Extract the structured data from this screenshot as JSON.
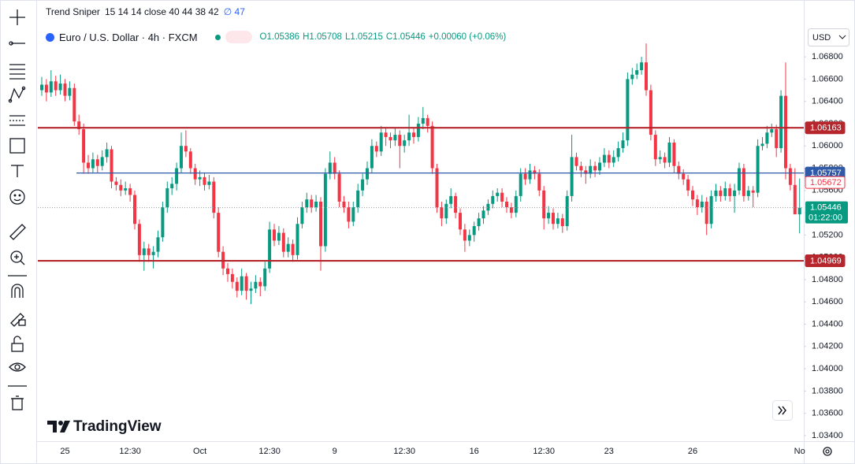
{
  "chart_data": {
    "type": "candlestick",
    "indicator_name": "Trend Sniper",
    "indicator_params": "15 14 14 close 40 44 38 42",
    "indicator_value": "∅ 47",
    "symbol": "Euro / U.S. Dollar · 4h · FXCM",
    "quote": [
      "O1.05386",
      "H1.05708",
      "L1.05215",
      "C1.05446",
      "+0.00060 (+0.06%)"
    ],
    "currency": "USD",
    "brand": "TradingView",
    "up_color": "#089981",
    "down_color": "#f23645",
    "grid": false,
    "ylim": [
      1.0335,
      1.0731
    ],
    "yticks": [
      {
        "value": 1.068,
        "label": "1.06800"
      },
      {
        "value": 1.066,
        "label": "1.06600"
      },
      {
        "value": 1.064,
        "label": "1.06400"
      },
      {
        "value": 1.062,
        "label": "1.06200"
      },
      {
        "value": 1.06,
        "label": "1.06000"
      },
      {
        "value": 1.058,
        "label": "1.05800"
      },
      {
        "value": 1.056,
        "label": "1.05600"
      },
      {
        "value": 1.054,
        "label": "1.05400"
      },
      {
        "value": 1.052,
        "label": "1.05200"
      },
      {
        "value": 1.05,
        "label": "1.05000"
      },
      {
        "value": 1.048,
        "label": "1.04800"
      },
      {
        "value": 1.046,
        "label": "1.04600"
      },
      {
        "value": 1.044,
        "label": "1.04400"
      },
      {
        "value": 1.042,
        "label": "1.04200"
      },
      {
        "value": 1.04,
        "label": "1.04000"
      },
      {
        "value": 1.038,
        "label": "1.03800"
      },
      {
        "value": 1.036,
        "label": "1.03600"
      },
      {
        "value": 1.034,
        "label": "1.03400"
      }
    ],
    "price_lines": [
      {
        "value": 1.06163,
        "color": "#b5272d",
        "style": "line"
      },
      {
        "value": 1.04969,
        "color": "#b5272d",
        "style": "line"
      },
      {
        "value": 1.05757,
        "color": "#2f5aa8",
        "style": "ray"
      },
      {
        "value": 1.05672,
        "color": "#f23645",
        "style": "outline"
      }
    ],
    "last_price": {
      "value": 1.05446,
      "countdown": "01:22:00",
      "color": "#089981"
    },
    "categories": [
      null,
      null,
      null,
      null,
      null,
      "25",
      null,
      null,
      null,
      null,
      null,
      null,
      null,
      null,
      null,
      null,
      null,
      null,
      null,
      "12:30",
      null,
      null,
      null,
      null,
      null,
      null,
      null,
      null,
      null,
      null,
      null,
      null,
      null,
      null,
      "Oct",
      null,
      null,
      null,
      null,
      null,
      null,
      null,
      null,
      null,
      null,
      null,
      null,
      null,
      null,
      "12:30",
      null,
      null,
      null,
      null,
      null,
      null,
      null,
      null,
      null,
      null,
      null,
      null,
      null,
      "9",
      null,
      null,
      null,
      null,
      null,
      null,
      null,
      null,
      null,
      null,
      null,
      null,
      null,
      null,
      "12:30",
      null,
      null,
      null,
      null,
      null,
      null,
      null,
      null,
      null,
      null,
      null,
      null,
      null,
      null,
      "16",
      null,
      null,
      null,
      null,
      null,
      null,
      null,
      null,
      null,
      null,
      null,
      null,
      null,
      null,
      "12:30",
      null,
      null,
      null,
      null,
      null,
      null,
      null,
      null,
      null,
      null,
      null,
      null,
      null,
      "23",
      null,
      null,
      null,
      null,
      null,
      null,
      null,
      null,
      null,
      null,
      null,
      null,
      null,
      null,
      null,
      null,
      null,
      "26",
      null,
      null,
      null,
      null,
      null,
      null,
      null,
      null,
      null,
      null,
      null,
      null,
      null,
      null,
      null,
      null,
      null,
      null,
      null,
      null,
      null,
      null,
      "No"
    ],
    "ohlc": [
      [
        1.065,
        1.0662,
        1.0645,
        1.0655
      ],
      [
        1.0655,
        1.066,
        1.064,
        1.0648
      ],
      [
        1.0648,
        1.0668,
        1.0644,
        1.0658
      ],
      [
        1.0658,
        1.0663,
        1.0645,
        1.065
      ],
      [
        1.065,
        1.0664,
        1.0646,
        1.0656
      ],
      [
        1.0656,
        1.066,
        1.064,
        1.0645
      ],
      [
        1.0645,
        1.0658,
        1.0641,
        1.0652
      ],
      [
        1.0652,
        1.0656,
        1.0618,
        1.0622
      ],
      [
        1.0622,
        1.0628,
        1.061,
        1.0615
      ],
      [
        1.0615,
        1.062,
        1.0575,
        1.0585
      ],
      [
        1.0585,
        1.0592,
        1.0575,
        1.058
      ],
      [
        1.058,
        1.0594,
        1.0576,
        1.0588
      ],
      [
        1.0588,
        1.0592,
        1.0576,
        1.0582
      ],
      [
        1.0582,
        1.0596,
        1.0578,
        1.059
      ],
      [
        1.059,
        1.0603,
        1.0585,
        1.0597
      ],
      [
        1.0597,
        1.06,
        1.0562,
        1.0568
      ],
      [
        1.0568,
        1.0572,
        1.056,
        1.0565
      ],
      [
        1.0565,
        1.057,
        1.0555,
        1.056
      ],
      [
        1.056,
        1.0568,
        1.0556,
        1.0562
      ],
      [
        1.0562,
        1.0566,
        1.055,
        1.0556
      ],
      [
        1.0556,
        1.056,
        1.0525,
        1.053
      ],
      [
        1.053,
        1.0534,
        1.0496,
        1.0502
      ],
      [
        1.0502,
        1.0514,
        1.0488,
        1.0508
      ],
      [
        1.0508,
        1.0512,
        1.0496,
        1.0502
      ],
      [
        1.0502,
        1.051,
        1.049,
        1.0505
      ],
      [
        1.0505,
        1.0524,
        1.05,
        1.0518
      ],
      [
        1.0518,
        1.055,
        1.0514,
        1.0545
      ],
      [
        1.0545,
        1.0568,
        1.054,
        1.0562
      ],
      [
        1.0562,
        1.0572,
        1.0556,
        1.0566
      ],
      [
        1.0566,
        1.0585,
        1.056,
        1.058
      ],
      [
        1.058,
        1.0612,
        1.0576,
        1.06
      ],
      [
        1.06,
        1.0614,
        1.059,
        1.0595
      ],
      [
        1.0595,
        1.0598,
        1.0575,
        1.058
      ],
      [
        1.058,
        1.0584,
        1.0565,
        1.057
      ],
      [
        1.057,
        1.0578,
        1.0564,
        1.0572
      ],
      [
        1.0572,
        1.0576,
        1.056,
        1.0565
      ],
      [
        1.0565,
        1.0574,
        1.0561,
        1.0568
      ],
      [
        1.0568,
        1.0572,
        1.0535,
        1.054
      ],
      [
        1.054,
        1.0545,
        1.05,
        1.0505
      ],
      [
        1.0505,
        1.051,
        1.0484,
        1.049
      ],
      [
        1.049,
        1.0495,
        1.0478,
        1.0485
      ],
      [
        1.0485,
        1.049,
        1.0472,
        1.0478
      ],
      [
        1.0478,
        1.0482,
        1.0464,
        1.047
      ],
      [
        1.047,
        1.049,
        1.0466,
        1.0483
      ],
      [
        1.0483,
        1.0486,
        1.0462,
        1.047
      ],
      [
        1.047,
        1.0478,
        1.0458,
        1.0472
      ],
      [
        1.0472,
        1.0484,
        1.0468,
        1.0478
      ],
      [
        1.0478,
        1.0482,
        1.0465,
        1.0474
      ],
      [
        1.0474,
        1.0496,
        1.047,
        1.049
      ],
      [
        1.049,
        1.0532,
        1.0486,
        1.0525
      ],
      [
        1.0525,
        1.053,
        1.051,
        1.0515
      ],
      [
        1.0515,
        1.0528,
        1.0511,
        1.0522
      ],
      [
        1.0522,
        1.0526,
        1.05,
        1.0505
      ],
      [
        1.0505,
        1.0518,
        1.05,
        1.0512
      ],
      [
        1.0512,
        1.0516,
        1.0496,
        1.0502
      ],
      [
        1.0502,
        1.0536,
        1.0498,
        1.053
      ],
      [
        1.053,
        1.055,
        1.0526,
        1.0545
      ],
      [
        1.0545,
        1.0558,
        1.054,
        1.0552
      ],
      [
        1.0552,
        1.0556,
        1.054,
        1.0545
      ],
      [
        1.0545,
        1.0556,
        1.0541,
        1.055
      ],
      [
        1.055,
        1.0554,
        1.0488,
        1.051
      ],
      [
        1.051,
        1.058,
        1.0505,
        1.0575
      ],
      [
        1.0575,
        1.0595,
        1.057,
        1.0585
      ],
      [
        1.0585,
        1.059,
        1.057,
        1.0575
      ],
      [
        1.0575,
        1.0578,
        1.0545,
        1.055
      ],
      [
        1.055,
        1.0555,
        1.054,
        1.0545
      ],
      [
        1.0545,
        1.055,
        1.0526,
        1.0532
      ],
      [
        1.0532,
        1.055,
        1.0528,
        1.0545
      ],
      [
        1.0545,
        1.0566,
        1.054,
        1.056
      ],
      [
        1.056,
        1.0575,
        1.0555,
        1.057
      ],
      [
        1.057,
        1.0586,
        1.0565,
        1.058
      ],
      [
        1.058,
        1.0606,
        1.0576,
        1.06
      ],
      [
        1.06,
        1.0604,
        1.059,
        1.0595
      ],
      [
        1.0595,
        1.0618,
        1.0591,
        1.0612
      ],
      [
        1.0612,
        1.0616,
        1.06,
        1.0608
      ],
      [
        1.0608,
        1.0612,
        1.0598,
        1.0605
      ],
      [
        1.0605,
        1.0616,
        1.06,
        1.061
      ],
      [
        1.061,
        1.0614,
        1.058,
        1.06
      ],
      [
        1.06,
        1.061,
        1.0594,
        1.0605
      ],
      [
        1.0605,
        1.0628,
        1.06,
        1.0612
      ],
      [
        1.0612,
        1.0616,
        1.0602,
        1.0608
      ],
      [
        1.0608,
        1.0626,
        1.0604,
        1.062
      ],
      [
        1.062,
        1.0635,
        1.0615,
        1.0625
      ],
      [
        1.0625,
        1.0628,
        1.0612,
        1.0618
      ],
      [
        1.0618,
        1.0622,
        1.0575,
        1.058
      ],
      [
        1.058,
        1.0584,
        1.054,
        1.0545
      ],
      [
        1.0545,
        1.055,
        1.0528,
        1.0535
      ],
      [
        1.0535,
        1.0552,
        1.053,
        1.0548
      ],
      [
        1.0548,
        1.0562,
        1.0544,
        1.0555
      ],
      [
        1.0555,
        1.0558,
        1.0535,
        1.054
      ],
      [
        1.054,
        1.0544,
        1.052,
        1.0525
      ],
      [
        1.0525,
        1.053,
        1.0505,
        1.0515
      ],
      [
        1.0515,
        1.0525,
        1.051,
        1.052
      ],
      [
        1.052,
        1.0532,
        1.0514,
        1.0528
      ],
      [
        1.0528,
        1.054,
        1.0524,
        1.0535
      ],
      [
        1.0535,
        1.0546,
        1.053,
        1.0542
      ],
      [
        1.0542,
        1.0552,
        1.0538,
        1.0548
      ],
      [
        1.0548,
        1.056,
        1.0544,
        1.0555
      ],
      [
        1.0555,
        1.0562,
        1.055,
        1.0558
      ],
      [
        1.0558,
        1.0562,
        1.0545,
        1.055
      ],
      [
        1.055,
        1.0554,
        1.054,
        1.0545
      ],
      [
        1.0545,
        1.0549,
        1.0535,
        1.054
      ],
      [
        1.054,
        1.056,
        1.0536,
        1.0555
      ],
      [
        1.0555,
        1.058,
        1.055,
        1.0575
      ],
      [
        1.0575,
        1.058,
        1.0565,
        1.057
      ],
      [
        1.057,
        1.0584,
        1.0566,
        1.0578
      ],
      [
        1.0578,
        1.0582,
        1.057,
        1.0575
      ],
      [
        1.0575,
        1.0579,
        1.0555,
        1.056
      ],
      [
        1.056,
        1.0564,
        1.0525,
        1.0535
      ],
      [
        1.0535,
        1.0546,
        1.053,
        1.054
      ],
      [
        1.054,
        1.0544,
        1.0525,
        1.053
      ],
      [
        1.053,
        1.054,
        1.0526,
        1.0535
      ],
      [
        1.0535,
        1.0539,
        1.0522,
        1.0528
      ],
      [
        1.0528,
        1.056,
        1.0524,
        1.0555
      ],
      [
        1.0555,
        1.061,
        1.055,
        1.059
      ],
      [
        1.059,
        1.0594,
        1.0578,
        1.0582
      ],
      [
        1.0582,
        1.0586,
        1.0572,
        1.0578
      ],
      [
        1.0578,
        1.0582,
        1.0566,
        1.0575
      ],
      [
        1.0575,
        1.0588,
        1.0571,
        1.0582
      ],
      [
        1.0582,
        1.0586,
        1.0572,
        1.0578
      ],
      [
        1.0578,
        1.059,
        1.0574,
        1.0585
      ],
      [
        1.0585,
        1.0598,
        1.0581,
        1.0592
      ],
      [
        1.0592,
        1.0596,
        1.058,
        1.0585
      ],
      [
        1.0585,
        1.0596,
        1.0581,
        1.059
      ],
      [
        1.059,
        1.0604,
        1.0586,
        1.0598
      ],
      [
        1.0598,
        1.0612,
        1.0594,
        1.0605
      ],
      [
        1.0605,
        1.0666,
        1.06,
        1.066
      ],
      [
        1.066,
        1.067,
        1.0655,
        1.0664
      ],
      [
        1.0664,
        1.0674,
        1.066,
        1.0668
      ],
      [
        1.0668,
        1.068,
        1.0664,
        1.0675
      ],
      [
        1.0675,
        1.0692,
        1.0645,
        1.065
      ],
      [
        1.065,
        1.0655,
        1.0605,
        1.061
      ],
      [
        1.061,
        1.0614,
        1.0582,
        1.0588
      ],
      [
        1.0588,
        1.0596,
        1.0584,
        1.059
      ],
      [
        1.059,
        1.0594,
        1.058,
        1.0585
      ],
      [
        1.0585,
        1.0608,
        1.0581,
        1.0603
      ],
      [
        1.0603,
        1.0606,
        1.0576,
        1.0582
      ],
      [
        1.0582,
        1.0586,
        1.057,
        1.0575
      ],
      [
        1.0575,
        1.0579,
        1.0565,
        1.057
      ],
      [
        1.057,
        1.0574,
        1.0555,
        1.056
      ],
      [
        1.056,
        1.0564,
        1.0546,
        1.0552
      ],
      [
        1.0552,
        1.0556,
        1.0538,
        1.0545
      ],
      [
        1.0545,
        1.0556,
        1.054,
        1.055
      ],
      [
        1.055,
        1.0554,
        1.052,
        1.053
      ],
      [
        1.053,
        1.056,
        1.0526,
        1.0555
      ],
      [
        1.0555,
        1.0566,
        1.055,
        1.056
      ],
      [
        1.056,
        1.0564,
        1.055,
        1.0555
      ],
      [
        1.0555,
        1.0568,
        1.0551,
        1.0562
      ],
      [
        1.0562,
        1.0566,
        1.055,
        1.0555
      ],
      [
        1.0555,
        1.0566,
        1.054,
        1.056
      ],
      [
        1.056,
        1.0585,
        1.0556,
        1.058
      ],
      [
        1.058,
        1.0584,
        1.055,
        1.0555
      ],
      [
        1.0555,
        1.0564,
        1.0551,
        1.056
      ],
      [
        1.056,
        1.0564,
        1.0545,
        1.0558
      ],
      [
        1.0558,
        1.0606,
        1.0554,
        1.06
      ],
      [
        1.06,
        1.0608,
        1.0596,
        1.0602
      ],
      [
        1.0602,
        1.0618,
        1.0598,
        1.0612
      ],
      [
        1.0612,
        1.062,
        1.0608,
        1.0615
      ],
      [
        1.0615,
        1.0619,
        1.059,
        1.0598
      ],
      [
        1.0598,
        1.065,
        1.0594,
        1.0645
      ],
      [
        1.0645,
        1.0675,
        1.057,
        1.058
      ],
      [
        1.058,
        1.0584,
        1.056,
        1.0565
      ],
      [
        1.0565,
        1.058,
        1.054,
        1.05386
      ],
      [
        1.05386,
        1.05708,
        1.05215,
        1.05446
      ]
    ]
  }
}
